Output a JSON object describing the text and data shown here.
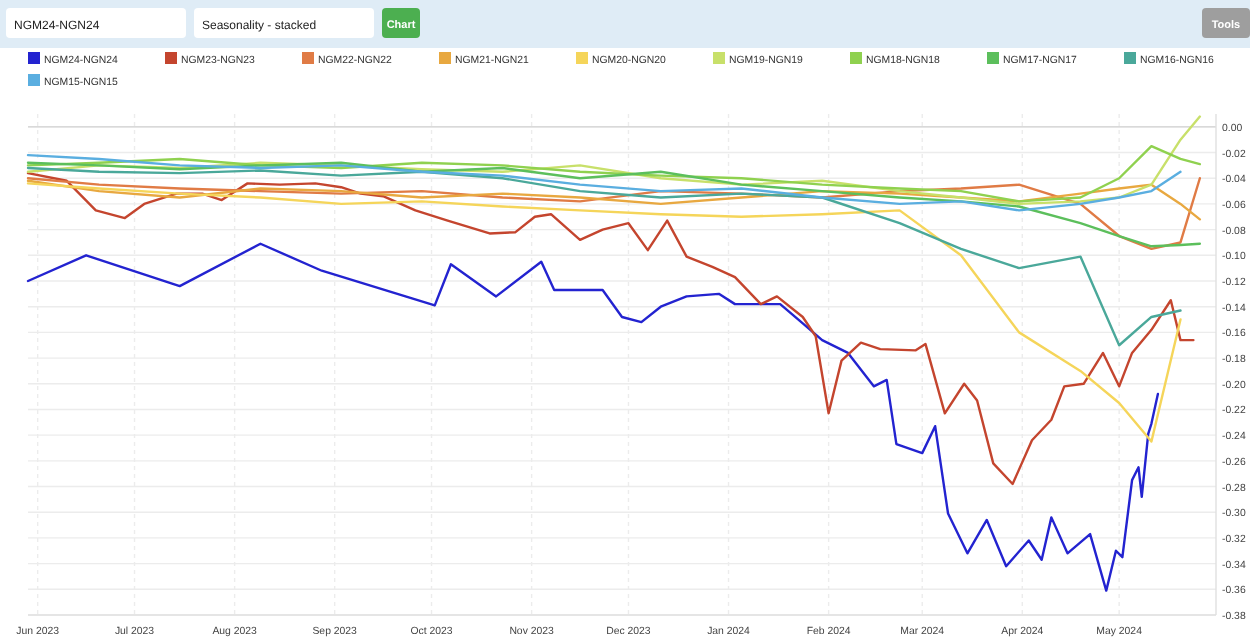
{
  "chart_data": {
    "type": "line",
    "title": "NGM24-NGN24",
    "subtitle": "Seasonality - stacked",
    "annotations": [
      "Chart",
      "Tools"
    ],
    "legend": "top",
    "grid": true,
    "marker": "none",
    "line_style": "solid",
    "xlim": [
      "2023-05-29",
      "2024-05-31"
    ],
    "xticks": [
      {
        "value": "2023-06-01",
        "label": "Jun 2023"
      },
      {
        "value": "2023-07-01",
        "label": "Jul 2023"
      },
      {
        "value": "2023-08-01",
        "label": "Aug 2023"
      },
      {
        "value": "2023-09-01",
        "label": "Sep 2023"
      },
      {
        "value": "2023-10-01",
        "label": "Oct 2023"
      },
      {
        "value": "2023-11-01",
        "label": "Nov 2023"
      },
      {
        "value": "2023-12-01",
        "label": "Dec 2023"
      },
      {
        "value": "2024-01-01",
        "label": "Jan 2024"
      },
      {
        "value": "2024-02-01",
        "label": "Feb 2024"
      },
      {
        "value": "2024-03-01",
        "label": "Mar 2024"
      },
      {
        "value": "2024-04-01",
        "label": "Apr 2024"
      },
      {
        "value": "2024-05-01",
        "label": "May 2024"
      }
    ],
    "ylim": [
      -0.38,
      0.01
    ],
    "yticks": [
      {
        "value": 0,
        "label": "0.00"
      },
      {
        "value": -0.02,
        "label": "-0.02"
      },
      {
        "value": -0.04,
        "label": "-0.04"
      },
      {
        "value": -0.06,
        "label": "-0.06"
      },
      {
        "value": -0.08,
        "label": "-0.08"
      },
      {
        "value": -0.1,
        "label": "-0.10"
      },
      {
        "value": -0.12,
        "label": "-0.12"
      },
      {
        "value": -0.14,
        "label": "-0.14"
      },
      {
        "value": -0.16,
        "label": "-0.16"
      },
      {
        "value": -0.18,
        "label": "-0.18"
      },
      {
        "value": -0.2,
        "label": "-0.20"
      },
      {
        "value": -0.22,
        "label": "-0.22"
      },
      {
        "value": -0.24,
        "label": "-0.24"
      },
      {
        "value": -0.26,
        "label": "-0.26"
      },
      {
        "value": -0.28,
        "label": "-0.28"
      },
      {
        "value": -0.3,
        "label": "-0.30"
      },
      {
        "value": -0.32,
        "label": "-0.32"
      },
      {
        "value": -0.34,
        "label": "-0.34"
      },
      {
        "value": -0.36,
        "label": "-0.36"
      },
      {
        "value": -0.38,
        "label": "-0.38"
      }
    ],
    "x": [
      "2023-05-29",
      "2023-06-20",
      "2023-07-15",
      "2023-08-09",
      "2023-09-03",
      "2023-09-28",
      "2023-10-23",
      "2023-11-16",
      "2023-12-11",
      "2024-01-05",
      "2024-01-30",
      "2024-02-23",
      "2024-03-13",
      "2024-03-31",
      "2024-04-19",
      "2024-05-01",
      "2024-05-11",
      "2024-05-20",
      "2024-05-26"
    ],
    "series": [
      {
        "name": "NGM24-NGN24",
        "color": "#2323d0",
        "x": [
          "2023-05-29",
          "2023-06-16",
          "2023-07-15",
          "2023-08-09",
          "2023-08-28",
          "2023-10-02",
          "2023-10-07",
          "2023-10-21",
          "2023-11-04",
          "2023-11-08",
          "2023-11-23",
          "2023-11-29",
          "2023-12-05",
          "2023-12-11",
          "2023-12-19",
          "2023-12-29",
          "2024-01-03",
          "2024-01-17",
          "2024-01-24",
          "2024-01-30",
          "2024-02-07",
          "2024-02-15",
          "2024-02-19",
          "2024-02-22",
          "2024-03-01",
          "2024-03-05",
          "2024-03-09",
          "2024-03-15",
          "2024-03-21",
          "2024-03-27",
          "2024-04-03",
          "2024-04-07",
          "2024-04-10",
          "2024-04-15",
          "2024-04-22",
          "2024-04-27",
          "2024-04-30",
          "2024-05-02",
          "2024-05-05",
          "2024-05-07",
          "2024-05-08",
          "2024-05-10",
          "2024-05-11",
          "2024-05-13"
        ],
        "values": [
          -0.12,
          -0.1,
          -0.124,
          -0.091,
          -0.112,
          -0.139,
          -0.107,
          -0.132,
          -0.105,
          -0.127,
          -0.127,
          -0.148,
          -0.152,
          -0.14,
          -0.132,
          -0.13,
          -0.138,
          -0.138,
          -0.153,
          -0.166,
          -0.176,
          -0.202,
          -0.197,
          -0.247,
          -0.254,
          -0.233,
          -0.301,
          -0.332,
          -0.306,
          -0.342,
          -0.322,
          -0.337,
          -0.304,
          -0.332,
          -0.317,
          -0.361,
          -0.33,
          -0.335,
          -0.275,
          -0.265,
          -0.288,
          -0.239,
          -0.231,
          -0.208
        ]
      },
      {
        "name": "NGM23-NGN23",
        "color": "#c4452e",
        "x": [
          "2023-05-29",
          "2023-06-10",
          "2023-06-19",
          "2023-06-28",
          "2023-07-04",
          "2023-07-14",
          "2023-07-22",
          "2023-07-28",
          "2023-08-05",
          "2023-08-15",
          "2023-08-26",
          "2023-09-03",
          "2023-09-09",
          "2023-09-16",
          "2023-09-26",
          "2023-10-06",
          "2023-10-19",
          "2023-10-27",
          "2023-11-02",
          "2023-11-07",
          "2023-11-16",
          "2023-11-23",
          "2023-12-01",
          "2023-12-07",
          "2023-12-13",
          "2023-12-19",
          "2023-12-27",
          "2024-01-03",
          "2024-01-11",
          "2024-01-16",
          "2024-01-24",
          "2024-01-28",
          "2024-02-01",
          "2024-02-05",
          "2024-02-11",
          "2024-02-17",
          "2024-02-28",
          "2024-03-02",
          "2024-03-08",
          "2024-03-14",
          "2024-03-18",
          "2024-03-23",
          "2024-03-29",
          "2024-04-04",
          "2024-04-10",
          "2024-04-14",
          "2024-04-20",
          "2024-04-26",
          "2024-05-01",
          "2024-05-05",
          "2024-05-11",
          "2024-05-17",
          "2024-05-20",
          "2024-05-24"
        ],
        "values": [
          -0.036,
          -0.042,
          -0.065,
          -0.071,
          -0.06,
          -0.052,
          -0.052,
          -0.057,
          -0.044,
          -0.045,
          -0.044,
          -0.047,
          -0.052,
          -0.054,
          -0.065,
          -0.073,
          -0.083,
          -0.082,
          -0.07,
          -0.068,
          -0.088,
          -0.08,
          -0.075,
          -0.096,
          -0.073,
          -0.101,
          -0.109,
          -0.117,
          -0.138,
          -0.132,
          -0.148,
          -0.163,
          -0.223,
          -0.182,
          -0.168,
          -0.173,
          -0.174,
          -0.169,
          -0.223,
          -0.2,
          -0.213,
          -0.262,
          -0.278,
          -0.244,
          -0.228,
          -0.202,
          -0.2,
          -0.176,
          -0.202,
          -0.176,
          -0.158,
          -0.135,
          -0.166,
          -0.166
        ]
      },
      {
        "name": "NGM22-NGN22",
        "color": "#e07b45",
        "values": [
          -0.04,
          -0.045,
          -0.048,
          -0.05,
          -0.052,
          -0.05,
          -0.055,
          -0.058,
          -0.05,
          -0.052,
          -0.055,
          -0.05,
          -0.048,
          -0.045,
          -0.06,
          -0.085,
          -0.095,
          -0.09,
          -0.04
        ]
      },
      {
        "name": "NGM21-NGN21",
        "color": "#e8a840",
        "values": [
          -0.042,
          -0.05,
          -0.055,
          -0.048,
          -0.05,
          -0.055,
          -0.052,
          -0.055,
          -0.06,
          -0.055,
          -0.05,
          -0.052,
          -0.055,
          -0.058,
          -0.052,
          -0.048,
          -0.045,
          -0.06,
          -0.072
        ]
      },
      {
        "name": "NGM20-NGN20",
        "color": "#f5d55a",
        "values": [
          -0.044,
          -0.048,
          -0.052,
          -0.055,
          -0.06,
          -0.058,
          -0.062,
          -0.065,
          -0.068,
          -0.07,
          -0.068,
          -0.065,
          -0.1,
          -0.16,
          -0.19,
          -0.215,
          -0.245,
          -0.15,
          null
        ]
      },
      {
        "name": "NGM19-NGN19",
        "color": "#c8e06a",
        "values": [
          -0.035,
          -0.03,
          -0.032,
          -0.028,
          -0.03,
          -0.033,
          -0.035,
          -0.03,
          -0.04,
          -0.045,
          -0.042,
          -0.05,
          -0.055,
          -0.06,
          -0.058,
          -0.055,
          -0.045,
          -0.01,
          0.008
        ]
      },
      {
        "name": "NGM18-NGN18",
        "color": "#8fd14f",
        "values": [
          -0.03,
          -0.028,
          -0.025,
          -0.03,
          -0.032,
          -0.028,
          -0.03,
          -0.035,
          -0.038,
          -0.04,
          -0.045,
          -0.048,
          -0.05,
          -0.058,
          -0.055,
          -0.04,
          -0.015,
          -0.025,
          -0.029
        ]
      },
      {
        "name": "NGM17-NGN17",
        "color": "#5cbf5c",
        "values": [
          -0.028,
          -0.03,
          -0.033,
          -0.03,
          -0.028,
          -0.035,
          -0.032,
          -0.04,
          -0.035,
          -0.045,
          -0.05,
          -0.055,
          -0.058,
          -0.062,
          -0.075,
          -0.085,
          -0.093,
          -0.092,
          -0.091
        ]
      },
      {
        "name": "NGM16-NGN16",
        "color": "#4aa89a",
        "values": [
          -0.032,
          -0.035,
          -0.036,
          -0.034,
          -0.038,
          -0.035,
          -0.04,
          -0.05,
          -0.055,
          -0.052,
          -0.055,
          -0.075,
          -0.095,
          -0.11,
          -0.101,
          -0.17,
          -0.148,
          -0.143,
          null
        ]
      },
      {
        "name": "NGM15-NGN15",
        "color": "#5aaee0",
        "values": [
          -0.022,
          -0.025,
          -0.03,
          -0.032,
          -0.03,
          -0.035,
          -0.038,
          -0.045,
          -0.05,
          -0.048,
          -0.055,
          -0.06,
          -0.058,
          -0.065,
          -0.06,
          -0.055,
          -0.05,
          -0.035,
          null
        ]
      }
    ]
  }
}
